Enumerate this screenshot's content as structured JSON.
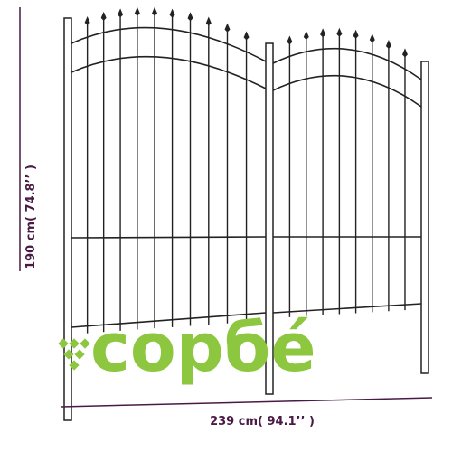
{
  "dimensions": {
    "height": "190 cm( 74.8’’ )",
    "width": "239 cm( 94.1’’ )"
  },
  "watermark": "copбé"
}
